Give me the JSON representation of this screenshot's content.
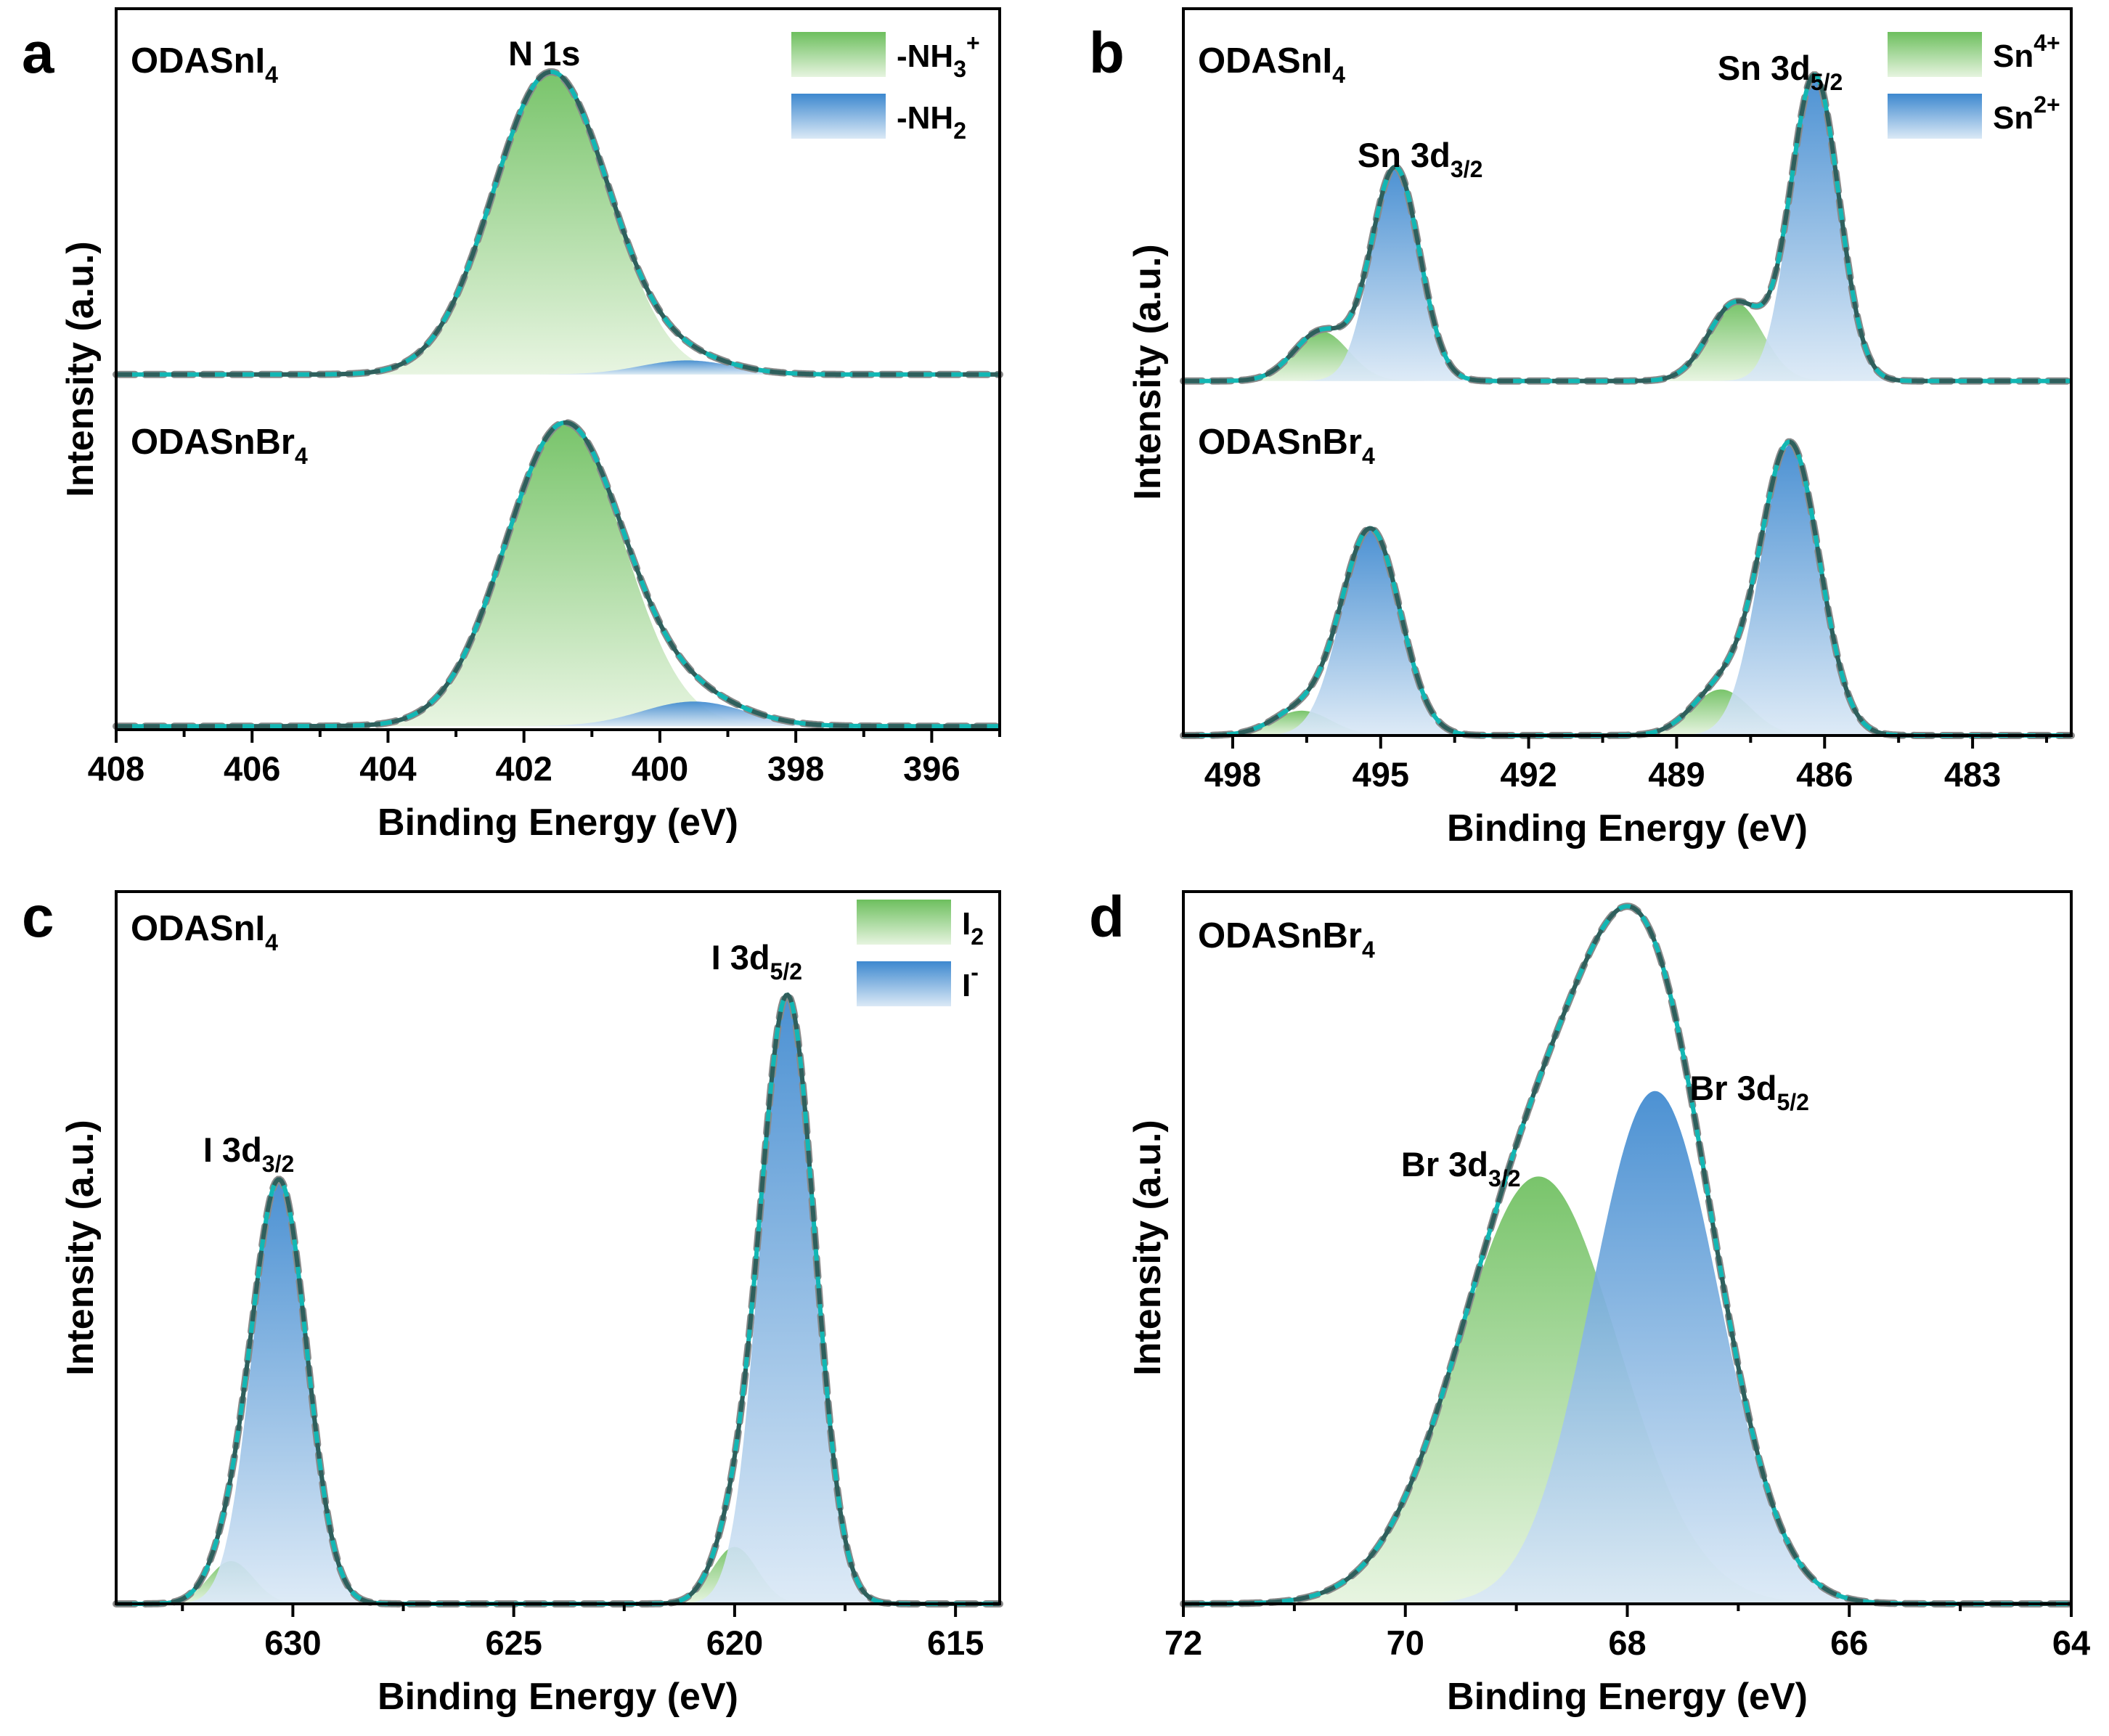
{
  "figure": {
    "panels": [
      {
        "id": "a",
        "letter": "a",
        "xlabel": "Binding Energy (eV)",
        "ylabel": "Intensity (a.u.)",
        "annotations": [
          {
            "text": "N 1s",
            "x": 401.7
          }
        ],
        "legend": [
          {
            "label": "-NH",
            "sub": "3",
            "sup": "+",
            "color": "green"
          },
          {
            "label": "-NH",
            "sub": "2",
            "sup": "",
            "color": "blue"
          }
        ]
      },
      {
        "id": "b",
        "letter": "b",
        "xlabel": "Binding Energy (eV)",
        "ylabel": "Intensity (a.u.)",
        "annotations": [
          {
            "text": "Sn 3d",
            "sub": "3/2",
            "x": 494.2
          },
          {
            "text": "Sn 3d",
            "sub": "5/2",
            "x": 486.9
          }
        ],
        "legend": [
          {
            "label": "Sn",
            "sub": "",
            "sup": "4+",
            "color": "green"
          },
          {
            "label": "Sn",
            "sub": "",
            "sup": "2+",
            "color": "blue"
          }
        ]
      },
      {
        "id": "c",
        "letter": "c",
        "xlabel": "Binding Energy (eV)",
        "ylabel": "Intensity (a.u.)",
        "annotations": [
          {
            "text": "I 3d",
            "sub": "3/2",
            "x": 631.0
          },
          {
            "text": "I 3d",
            "sub": "5/2",
            "x": 619.5
          }
        ],
        "legend": [
          {
            "label": "I",
            "sub": "2",
            "sup": "",
            "color": "green"
          },
          {
            "label": "I",
            "sub": "",
            "sup": "-",
            "color": "blue"
          }
        ]
      },
      {
        "id": "d",
        "letter": "d",
        "xlabel": "Binding Energy (eV)",
        "ylabel": "Intensity (a.u.)",
        "annotations": [
          {
            "text": "Br 3d",
            "sub": "3/2",
            "x": 69.5
          },
          {
            "text": "Br 3d",
            "sub": "5/2",
            "x": 66.9
          }
        ],
        "legend": []
      }
    ]
  },
  "chart_data": [
    {
      "panel": "a",
      "type": "line",
      "title": "N 1s",
      "xlabel": "Binding Energy (eV)",
      "ylabel": "Intensity (a.u.)",
      "xlim": [
        408,
        395
      ],
      "xticks": [
        408,
        406,
        404,
        402,
        400,
        398,
        396
      ],
      "ylim": [
        0,
        2.05
      ],
      "stacked_spectra": [
        {
          "name": "ODASnI4",
          "label_main": "ODASnI",
          "label_sub": "4",
          "offset": 1.0,
          "baseline": 0.01,
          "noise": 0.006,
          "components": [
            {
              "name": "-NH3+",
              "color": "green",
              "center": 401.6,
              "height": 0.86,
              "fwhm": 2.0
            },
            {
              "name": "-NH2",
              "color": "blue",
              "center": 399.6,
              "height": 0.04,
              "fwhm": 1.6
            }
          ]
        },
        {
          "name": "ODASnBr4",
          "label_main": "ODASnBr",
          "label_sub": "4",
          "offset": 0.0,
          "baseline": 0.01,
          "noise": 0.006,
          "components": [
            {
              "name": "-NH3+",
              "color": "green",
              "center": 401.4,
              "height": 0.86,
              "fwhm": 2.05
            },
            {
              "name": "-NH2",
              "color": "blue",
              "center": 399.5,
              "height": 0.07,
              "fwhm": 1.8
            }
          ]
        }
      ]
    },
    {
      "panel": "b",
      "type": "line",
      "title": "Sn 3d",
      "xlabel": "Binding Energy (eV)",
      "ylabel": "Intensity (a.u.)",
      "xlim": [
        499,
        481
      ],
      "xticks": [
        498,
        495,
        492,
        489,
        486,
        483
      ],
      "ylim": [
        0,
        2.05
      ],
      "stacked_spectra": [
        {
          "name": "ODASnI4",
          "label_main": "ODASnI",
          "label_sub": "4",
          "offset": 1.0,
          "baseline": 0.0,
          "noise": 0.0,
          "components": [
            {
              "name": "Sn4+",
              "color": "green",
              "center": 496.2,
              "height": 0.14,
              "fwhm": 1.3
            },
            {
              "name": "Sn2+",
              "color": "blue",
              "center": 494.7,
              "height": 0.6,
              "fwhm": 1.15
            },
            {
              "name": "Sn4+",
              "color": "green",
              "center": 487.8,
              "height": 0.22,
              "fwhm": 1.3
            },
            {
              "name": "Sn2+",
              "color": "blue",
              "center": 486.2,
              "height": 0.86,
              "fwhm": 1.15
            }
          ]
        },
        {
          "name": "ODASnBr4",
          "label_main": "ODASnBr",
          "label_sub": "4",
          "offset": 0.0,
          "baseline": 0.0,
          "noise": 0.0,
          "components": [
            {
              "name": "Sn4+",
              "color": "green",
              "center": 496.6,
              "height": 0.07,
              "fwhm": 1.4
            },
            {
              "name": "Sn2+",
              "color": "blue",
              "center": 495.2,
              "height": 0.58,
              "fwhm": 1.4
            },
            {
              "name": "Sn4+",
              "color": "green",
              "center": 488.1,
              "height": 0.13,
              "fwhm": 1.4
            },
            {
              "name": "Sn2+",
              "color": "blue",
              "center": 486.7,
              "height": 0.82,
              "fwhm": 1.4
            }
          ]
        }
      ]
    },
    {
      "panel": "c",
      "type": "line",
      "title": "I 3d",
      "xlabel": "Binding Energy (eV)",
      "ylabel": "Intensity (a.u.)",
      "xlim": [
        634,
        614
      ],
      "xticks": [
        630,
        625,
        620,
        615
      ],
      "ylim": [
        0,
        1.0
      ],
      "stacked_spectra": [
        {
          "name": "ODASnI4",
          "label_main": "ODASnI",
          "label_sub": "4",
          "offset": 0.0,
          "baseline": 0.0,
          "noise": 0.0,
          "components": [
            {
              "name": "I2",
              "color": "green",
              "center": 631.4,
              "height": 0.06,
              "fwhm": 1.2
            },
            {
              "name": "I-",
              "color": "blue",
              "center": 630.3,
              "height": 0.59,
              "fwhm": 1.45
            },
            {
              "name": "I2",
              "color": "green",
              "center": 620.0,
              "height": 0.08,
              "fwhm": 1.2
            },
            {
              "name": "I-",
              "color": "blue",
              "center": 618.8,
              "height": 0.85,
              "fwhm": 1.45
            }
          ]
        }
      ]
    },
    {
      "panel": "d",
      "type": "line",
      "title": "Br 3d",
      "xlabel": "Binding Energy (eV)",
      "ylabel": "Intensity (a.u.)",
      "xlim": [
        72,
        64
      ],
      "xticks": [
        72,
        70,
        68,
        66,
        64
      ],
      "ylim": [
        0,
        1.0
      ],
      "stacked_spectra": [
        {
          "name": "ODASnBr4",
          "label_main": "ODASnBr",
          "label_sub": "4",
          "offset": 0.0,
          "baseline": 0.0,
          "noise": 0.0,
          "components": [
            {
              "name": "Br 3d3/2",
              "color": "green",
              "center": 68.8,
              "height": 0.6,
              "fwhm": 1.7
            },
            {
              "name": "Br 3d5/2",
              "color": "blue",
              "center": 67.75,
              "height": 0.72,
              "fwhm": 1.35
            }
          ]
        }
      ]
    }
  ]
}
